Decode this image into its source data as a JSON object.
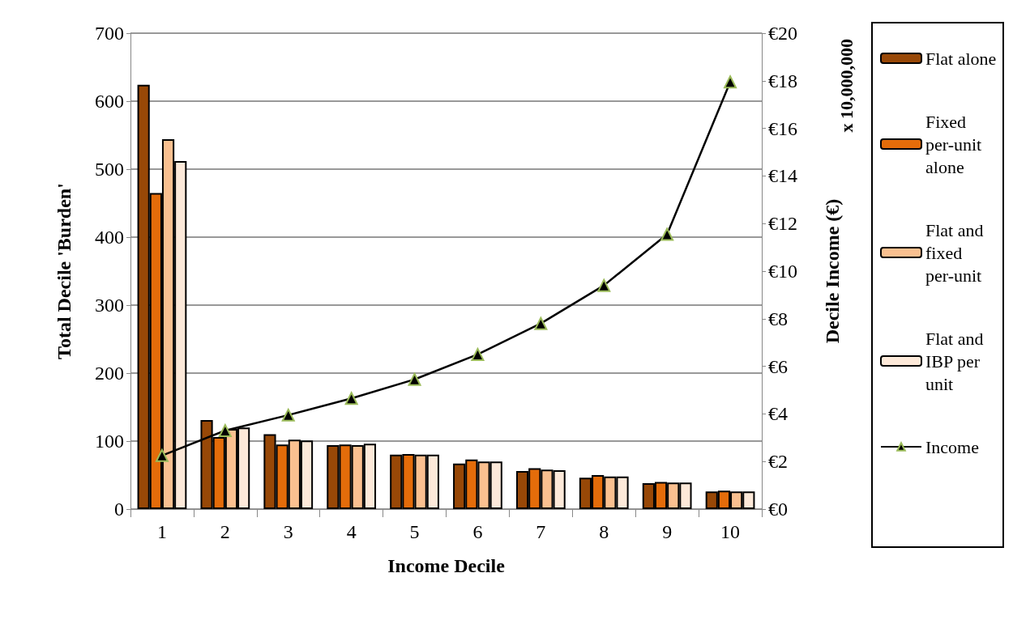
{
  "chart_data": {
    "type": "bar",
    "xlabel": "Income Decile",
    "ylabel": "Total Decile 'Burden'",
    "y2label": "Decile Income (€)",
    "annotations": [
      "x 10,000,000"
    ],
    "categories": [
      "1",
      "2",
      "3",
      "4",
      "5",
      "6",
      "7",
      "8",
      "9",
      "10"
    ],
    "series": [
      {
        "name": "Flat alone",
        "color": "#984807",
        "values": [
          624,
          131,
          110,
          94,
          80,
          67,
          56,
          46,
          38,
          26
        ]
      },
      {
        "name": "Fixed per-unit alone",
        "color": "#e46c0a",
        "values": [
          465,
          106,
          95,
          95,
          81,
          73,
          60,
          50,
          40,
          27
        ]
      },
      {
        "name": "Flat and fixed per-unit",
        "color": "#fac090",
        "values": [
          544,
          118,
          102,
          94,
          80,
          70,
          58,
          48,
          39,
          26
        ]
      },
      {
        "name": "Flat and IBP per unit",
        "color": "#fde9d9",
        "values": [
          512,
          120,
          101,
          96,
          80,
          70,
          57,
          48,
          39,
          26
        ]
      },
      {
        "name": "Income",
        "type": "line",
        "axis": "y2",
        "color": "#000000",
        "marker": "triangle",
        "values": [
          2.25,
          3.3,
          3.95,
          4.65,
          5.45,
          6.5,
          7.8,
          9.4,
          11.55,
          17.95
        ]
      }
    ],
    "ylim": [
      0,
      700
    ],
    "yticks": [
      0,
      100,
      200,
      300,
      400,
      500,
      600,
      700
    ],
    "y2lim": [
      0,
      20
    ],
    "y2ticks": [
      {
        "value": 0,
        "label": "€0"
      },
      {
        "value": 2,
        "label": "€2"
      },
      {
        "value": 4,
        "label": "€4"
      },
      {
        "value": 6,
        "label": "€6"
      },
      {
        "value": 8,
        "label": "€8"
      },
      {
        "value": 10,
        "label": "€10"
      },
      {
        "value": 12,
        "label": "€12"
      },
      {
        "value": 14,
        "label": "€14"
      },
      {
        "value": 16,
        "label": "€16"
      },
      {
        "value": 18,
        "label": "€18"
      },
      {
        "value": 20,
        "label": "€20"
      }
    ],
    "grid": "y",
    "legend": "right"
  }
}
